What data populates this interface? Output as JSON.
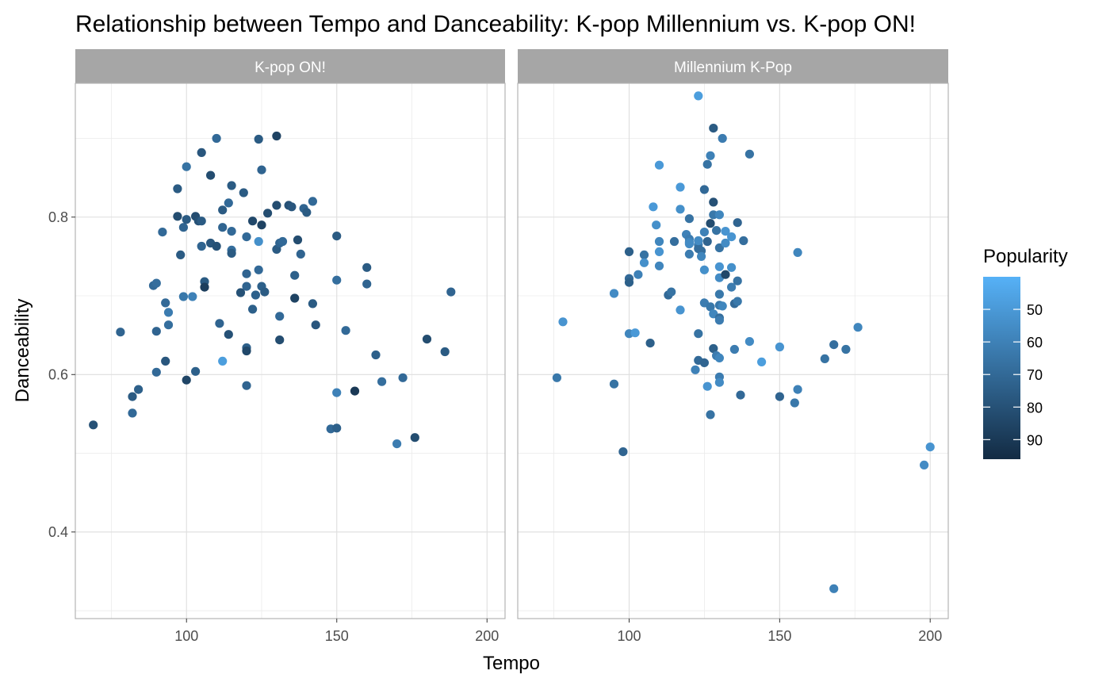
{
  "chart_data": {
    "type": "scatter",
    "title": "Relationship between Tempo and Danceability: K-pop Millennium vs. K-pop ON!",
    "xlabel": "Tempo",
    "ylabel": "Danceability",
    "xlim": [
      63,
      206
    ],
    "ylim": [
      0.29,
      0.97
    ],
    "x_ticks": [
      100,
      150,
      200
    ],
    "y_ticks": [
      0.4,
      0.6,
      0.8
    ],
    "grid": true,
    "facet_order": [
      "K-pop ON!",
      "Millennium K-Pop"
    ],
    "legend": {
      "title": "Popularity",
      "placement": "right",
      "ticks": [
        50,
        60,
        70,
        80,
        90
      ],
      "range": [
        40,
        96
      ],
      "color_low": "#132B43",
      "color_high": "#56B1F7"
    },
    "facets": [
      {
        "name": "K-pop ON!",
        "points": [
          [
            69,
            0.536,
            80
          ],
          [
            78,
            0.654,
            72
          ],
          [
            82,
            0.572,
            76
          ],
          [
            82,
            0.551,
            70
          ],
          [
            84,
            0.581,
            74
          ],
          [
            89,
            0.713,
            70
          ],
          [
            90,
            0.716,
            68
          ],
          [
            90,
            0.655,
            72
          ],
          [
            90,
            0.603,
            70
          ],
          [
            92,
            0.781,
            70
          ],
          [
            93,
            0.691,
            70
          ],
          [
            93,
            0.617,
            78
          ],
          [
            94,
            0.663,
            68
          ],
          [
            94,
            0.679,
            62
          ],
          [
            97,
            0.836,
            76
          ],
          [
            97,
            0.801,
            82
          ],
          [
            98,
            0.752,
            76
          ],
          [
            99,
            0.787,
            72
          ],
          [
            99,
            0.699,
            64
          ],
          [
            100,
            0.864,
            66
          ],
          [
            100,
            0.797,
            76
          ],
          [
            100,
            0.593,
            85
          ],
          [
            102,
            0.699,
            60
          ],
          [
            103,
            0.801,
            82
          ],
          [
            103,
            0.604,
            74
          ],
          [
            104,
            0.795,
            80
          ],
          [
            105,
            0.882,
            78
          ],
          [
            105,
            0.795,
            76
          ],
          [
            105,
            0.763,
            72
          ],
          [
            106,
            0.718,
            76
          ],
          [
            106,
            0.711,
            88
          ],
          [
            108,
            0.853,
            82
          ],
          [
            108,
            0.767,
            78
          ],
          [
            110,
            0.9,
            70
          ],
          [
            110,
            0.763,
            80
          ],
          [
            111,
            0.665,
            72
          ],
          [
            112,
            0.809,
            76
          ],
          [
            112,
            0.787,
            72
          ],
          [
            112,
            0.617,
            48
          ],
          [
            114,
            0.818,
            70
          ],
          [
            114,
            0.651,
            80
          ],
          [
            115,
            0.84,
            76
          ],
          [
            115,
            0.782,
            70
          ],
          [
            115,
            0.758,
            68
          ],
          [
            115,
            0.754,
            76
          ],
          [
            118,
            0.704,
            80
          ],
          [
            119,
            0.831,
            76
          ],
          [
            120,
            0.775,
            70
          ],
          [
            120,
            0.728,
            72
          ],
          [
            120,
            0.712,
            72
          ],
          [
            120,
            0.634,
            74
          ],
          [
            120,
            0.63,
            84
          ],
          [
            120,
            0.586,
            72
          ],
          [
            122,
            0.795,
            84
          ],
          [
            122,
            0.683,
            74
          ],
          [
            123,
            0.701,
            74
          ],
          [
            124,
            0.899,
            76
          ],
          [
            124,
            0.769,
            54
          ],
          [
            124,
            0.733,
            70
          ],
          [
            125,
            0.86,
            72
          ],
          [
            125,
            0.79,
            86
          ],
          [
            125,
            0.712,
            74
          ],
          [
            126,
            0.705,
            76
          ],
          [
            127,
            0.805,
            82
          ],
          [
            130,
            0.903,
            86
          ],
          [
            130,
            0.815,
            82
          ],
          [
            130,
            0.759,
            76
          ],
          [
            131,
            0.767,
            72
          ],
          [
            131,
            0.674,
            70
          ],
          [
            131,
            0.644,
            82
          ],
          [
            132,
            0.769,
            70
          ],
          [
            134,
            0.815,
            80
          ],
          [
            135,
            0.813,
            78
          ],
          [
            136,
            0.726,
            74
          ],
          [
            136,
            0.697,
            86
          ],
          [
            137,
            0.771,
            82
          ],
          [
            138,
            0.753,
            72
          ],
          [
            139,
            0.811,
            72
          ],
          [
            140,
            0.806,
            76
          ],
          [
            142,
            0.82,
            70
          ],
          [
            142,
            0.69,
            76
          ],
          [
            143,
            0.663,
            78
          ],
          [
            148,
            0.531,
            70
          ],
          [
            150,
            0.776,
            76
          ],
          [
            150,
            0.72,
            68
          ],
          [
            150,
            0.577,
            60
          ],
          [
            150,
            0.532,
            74
          ],
          [
            153,
            0.656,
            70
          ],
          [
            156,
            0.579,
            90
          ],
          [
            160,
            0.736,
            76
          ],
          [
            160,
            0.715,
            72
          ],
          [
            163,
            0.625,
            74
          ],
          [
            165,
            0.591,
            68
          ],
          [
            170,
            0.512,
            62
          ],
          [
            172,
            0.596,
            70
          ],
          [
            176,
            0.52,
            82
          ],
          [
            180,
            0.645,
            82
          ],
          [
            186,
            0.629,
            76
          ],
          [
            188,
            0.705,
            72
          ]
        ]
      },
      {
        "name": "Millennium K-Pop",
        "points": [
          [
            76,
            0.596,
            64
          ],
          [
            78,
            0.667,
            52
          ],
          [
            95,
            0.703,
            56
          ],
          [
            95,
            0.588,
            66
          ],
          [
            98,
            0.502,
            72
          ],
          [
            100,
            0.756,
            74
          ],
          [
            100,
            0.722,
            70
          ],
          [
            100,
            0.717,
            74
          ],
          [
            100,
            0.652,
            58
          ],
          [
            102,
            0.653,
            50
          ],
          [
            103,
            0.727,
            60
          ],
          [
            105,
            0.752,
            66
          ],
          [
            105,
            0.742,
            54
          ],
          [
            107,
            0.64,
            74
          ],
          [
            108,
            0.813,
            50
          ],
          [
            109,
            0.79,
            54
          ],
          [
            110,
            0.866,
            50
          ],
          [
            110,
            0.769,
            58
          ],
          [
            110,
            0.756,
            52
          ],
          [
            110,
            0.738,
            58
          ],
          [
            113,
            0.701,
            70
          ],
          [
            114,
            0.705,
            66
          ],
          [
            115,
            0.769,
            68
          ],
          [
            117,
            0.838,
            50
          ],
          [
            117,
            0.81,
            54
          ],
          [
            117,
            0.682,
            52
          ],
          [
            119,
            0.778,
            60
          ],
          [
            120,
            0.798,
            66
          ],
          [
            120,
            0.772,
            62
          ],
          [
            120,
            0.768,
            58
          ],
          [
            120,
            0.753,
            62
          ],
          [
            120,
            0.766,
            56
          ],
          [
            122,
            0.606,
            60
          ],
          [
            123,
            0.954,
            48
          ],
          [
            123,
            0.765,
            62
          ],
          [
            123,
            0.76,
            68
          ],
          [
            123,
            0.77,
            56
          ],
          [
            123,
            0.652,
            66
          ],
          [
            123,
            0.618,
            70
          ],
          [
            124,
            0.757,
            68
          ],
          [
            124,
            0.75,
            58
          ],
          [
            125,
            0.835,
            70
          ],
          [
            125,
            0.781,
            60
          ],
          [
            125,
            0.733,
            54
          ],
          [
            125,
            0.691,
            62
          ],
          [
            125,
            0.615,
            72
          ],
          [
            126,
            0.867,
            66
          ],
          [
            126,
            0.769,
            72
          ],
          [
            126,
            0.585,
            52
          ],
          [
            127,
            0.878,
            60
          ],
          [
            127,
            0.792,
            82
          ],
          [
            127,
            0.686,
            64
          ],
          [
            127,
            0.549,
            66
          ],
          [
            128,
            0.913,
            76
          ],
          [
            128,
            0.803,
            64
          ],
          [
            128,
            0.819,
            80
          ],
          [
            128,
            0.633,
            74
          ],
          [
            128,
            0.677,
            58
          ],
          [
            129,
            0.783,
            66
          ],
          [
            129,
            0.624,
            62
          ],
          [
            130,
            0.803,
            58
          ],
          [
            130,
            0.761,
            66
          ],
          [
            130,
            0.737,
            52
          ],
          [
            130,
            0.723,
            56
          ],
          [
            130,
            0.702,
            64
          ],
          [
            130,
            0.688,
            64
          ],
          [
            130,
            0.672,
            68
          ],
          [
            130,
            0.669,
            62
          ],
          [
            130,
            0.621,
            58
          ],
          [
            130,
            0.597,
            62
          ],
          [
            130,
            0.59,
            56
          ],
          [
            131,
            0.9,
            62
          ],
          [
            131,
            0.687,
            58
          ],
          [
            132,
            0.782,
            52
          ],
          [
            132,
            0.767,
            56
          ],
          [
            132,
            0.727,
            84
          ],
          [
            134,
            0.775,
            52
          ],
          [
            134,
            0.736,
            54
          ],
          [
            134,
            0.711,
            62
          ],
          [
            135,
            0.632,
            62
          ],
          [
            135,
            0.69,
            70
          ],
          [
            136,
            0.719,
            66
          ],
          [
            136,
            0.693,
            64
          ],
          [
            136,
            0.793,
            72
          ],
          [
            137,
            0.574,
            70
          ],
          [
            138,
            0.77,
            68
          ],
          [
            140,
            0.88,
            66
          ],
          [
            140,
            0.642,
            56
          ],
          [
            144,
            0.616,
            48
          ],
          [
            150,
            0.635,
            52
          ],
          [
            150,
            0.572,
            72
          ],
          [
            155,
            0.564,
            64
          ],
          [
            156,
            0.755,
            58
          ],
          [
            156,
            0.581,
            60
          ],
          [
            165,
            0.62,
            66
          ],
          [
            168,
            0.638,
            68
          ],
          [
            168,
            0.328,
            60
          ],
          [
            172,
            0.632,
            66
          ],
          [
            176,
            0.66,
            58
          ],
          [
            198,
            0.485,
            56
          ],
          [
            200,
            0.508,
            52
          ]
        ]
      }
    ]
  }
}
